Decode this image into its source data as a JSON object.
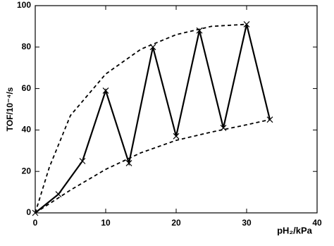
{
  "chart_data": {
    "type": "line",
    "xlabel": "pH₂/kPa",
    "ylabel": "TOF/10⁻⁴/s",
    "xlim": [
      0,
      40
    ],
    "xticks": [
      0,
      10,
      20,
      30,
      40
    ],
    "ylim": [
      0,
      100
    ],
    "yticks": [
      0,
      20,
      40,
      60,
      80,
      100
    ],
    "series": [
      {
        "color": "#000000",
        "marker": "x",
        "dash": false,
        "x": [
          0,
          3.3,
          6.7,
          10,
          13.3,
          16.7,
          20,
          23.3,
          26.7,
          30,
          33.3
        ],
        "values": [
          0,
          9,
          25,
          59,
          24,
          80,
          37,
          88,
          41,
          91,
          45
        ]
      },
      {
        "color": "#000000",
        "dash": true,
        "x": [
          0,
          2,
          5,
          10,
          15,
          20,
          25,
          30
        ],
        "values": [
          0,
          22,
          47,
          67,
          79,
          86,
          90,
          91
        ]
      },
      {
        "color": "#000000",
        "dash": true,
        "x": [
          0,
          5,
          10,
          15,
          20,
          25,
          30,
          33.3
        ],
        "values": [
          0,
          11,
          21,
          29,
          35,
          39,
          42.5,
          45
        ]
      }
    ]
  }
}
